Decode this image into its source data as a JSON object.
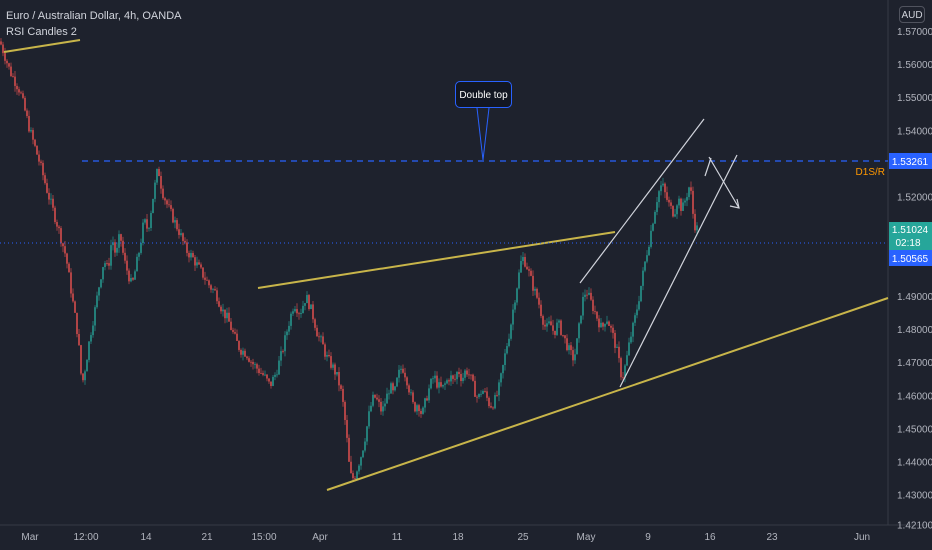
{
  "header": {
    "symbol_title": "Euro / Australian Dollar, 4h, OANDA",
    "indicator": "RSI Candles 2"
  },
  "price_axis": {
    "currency": "AUD",
    "ticks": [
      "1.57000",
      "1.56000",
      "1.55000",
      "1.54000",
      "1.52000",
      "1.51000",
      "1.49000",
      "1.48000",
      "1.47000",
      "1.46000",
      "1.45000",
      "1.44000",
      "1.43000",
      "1.42100"
    ],
    "resistance_label": "1.53261",
    "level_tag": "D1S/R",
    "last_price": "1.51024",
    "countdown": "02:18",
    "prev_close": "1.50565"
  },
  "time_axis": {
    "ticks": [
      "Mar",
      "12:00",
      "14",
      "21",
      "15:00",
      "Apr",
      "11",
      "18",
      "25",
      "May",
      "9",
      "16",
      "23",
      "Jun"
    ]
  },
  "annotations": {
    "callout_text": "Double top"
  },
  "colors": {
    "background": "#1e222d",
    "up_candle": "#26a69a",
    "down_candle": "#ef5350",
    "trendline": "#c8b54a",
    "channel": "#d1d4dc",
    "resistance": "#2962ff",
    "last_price_tag": "#26a69a",
    "prev_close_tag": "#2962ff"
  },
  "chart_data": {
    "type": "candlestick",
    "y_range": [
      1.421,
      1.578
    ],
    "waypoints": [
      [
        0,
        1.567
      ],
      [
        10,
        1.558
      ],
      [
        20,
        1.552
      ],
      [
        30,
        1.54
      ],
      [
        40,
        1.53
      ],
      [
        48,
        1.521
      ],
      [
        58,
        1.511
      ],
      [
        66,
        1.502
      ],
      [
        72,
        1.49
      ],
      [
        78,
        1.478
      ],
      [
        82,
        1.463
      ],
      [
        86,
        1.47
      ],
      [
        90,
        1.478
      ],
      [
        95,
        1.486
      ],
      [
        100,
        1.495
      ],
      [
        104,
        1.501
      ],
      [
        108,
        1.498
      ],
      [
        112,
        1.508
      ],
      [
        116,
        1.502
      ],
      [
        120,
        1.509
      ],
      [
        124,
        1.501
      ],
      [
        128,
        1.497
      ],
      [
        132,
        1.493
      ],
      [
        136,
        1.499
      ],
      [
        140,
        1.505
      ],
      [
        144,
        1.513
      ],
      [
        148,
        1.51
      ],
      [
        153,
        1.52
      ],
      [
        158,
        1.529
      ],
      [
        162,
        1.522
      ],
      [
        168,
        1.517
      ],
      [
        174,
        1.513
      ],
      [
        180,
        1.509
      ],
      [
        186,
        1.504
      ],
      [
        192,
        1.502
      ],
      [
        198,
        1.499
      ],
      [
        204,
        1.496
      ],
      [
        210,
        1.493
      ],
      [
        216,
        1.491
      ],
      [
        222,
        1.486
      ],
      [
        228,
        1.483
      ],
      [
        234,
        1.478
      ],
      [
        240,
        1.474
      ],
      [
        246,
        1.473
      ],
      [
        252,
        1.47
      ],
      [
        258,
        1.468
      ],
      [
        264,
        1.466
      ],
      [
        270,
        1.463
      ],
      [
        276,
        1.467
      ],
      [
        282,
        1.473
      ],
      [
        288,
        1.481
      ],
      [
        294,
        1.488
      ],
      [
        300,
        1.485
      ],
      [
        306,
        1.49
      ],
      [
        310,
        1.487
      ],
      [
        314,
        1.483
      ],
      [
        318,
        1.478
      ],
      [
        322,
        1.476
      ],
      [
        326,
        1.472
      ],
      [
        330,
        1.47
      ],
      [
        334,
        1.468
      ],
      [
        338,
        1.465
      ],
      [
        342,
        1.46
      ],
      [
        346,
        1.45
      ],
      [
        350,
        1.436
      ],
      [
        354,
        1.435
      ],
      [
        358,
        1.439
      ],
      [
        362,
        1.443
      ],
      [
        366,
        1.449
      ],
      [
        370,
        1.456
      ],
      [
        374,
        1.46
      ],
      [
        378,
        1.458
      ],
      [
        382,
        1.455
      ],
      [
        386,
        1.459
      ],
      [
        390,
        1.463
      ],
      [
        394,
        1.46
      ],
      [
        398,
        1.466
      ],
      [
        402,
        1.469
      ],
      [
        406,
        1.466
      ],
      [
        410,
        1.461
      ],
      [
        414,
        1.456
      ],
      [
        418,
        1.458
      ],
      [
        422,
        1.454
      ],
      [
        426,
        1.459
      ],
      [
        430,
        1.463
      ],
      [
        434,
        1.466
      ],
      [
        438,
        1.463
      ],
      [
        442,
        1.462
      ],
      [
        446,
        1.464
      ],
      [
        450,
        1.466
      ],
      [
        454,
        1.464
      ],
      [
        458,
        1.468
      ],
      [
        462,
        1.465
      ],
      [
        466,
        1.468
      ],
      [
        470,
        1.466
      ],
      [
        474,
        1.462
      ],
      [
        478,
        1.459
      ],
      [
        482,
        1.462
      ],
      [
        486,
        1.46
      ],
      [
        490,
        1.457
      ],
      [
        494,
        1.458
      ],
      [
        498,
        1.461
      ],
      [
        502,
        1.467
      ],
      [
        506,
        1.474
      ],
      [
        510,
        1.48
      ],
      [
        514,
        1.488
      ],
      [
        518,
        1.495
      ],
      [
        522,
        1.502
      ],
      [
        526,
        1.5
      ],
      [
        530,
        1.496
      ],
      [
        534,
        1.492
      ],
      [
        538,
        1.489
      ],
      [
        542,
        1.484
      ],
      [
        546,
        1.48
      ],
      [
        550,
        1.482
      ],
      [
        554,
        1.479
      ],
      [
        558,
        1.482
      ],
      [
        562,
        1.479
      ],
      [
        566,
        1.476
      ],
      [
        570,
        1.473
      ],
      [
        574,
        1.471
      ],
      [
        578,
        1.478
      ],
      [
        582,
        1.488
      ],
      [
        586,
        1.492
      ],
      [
        590,
        1.489
      ],
      [
        594,
        1.486
      ],
      [
        598,
        1.483
      ],
      [
        602,
        1.48
      ],
      [
        606,
        1.484
      ],
      [
        610,
        1.481
      ],
      [
        614,
        1.477
      ],
      [
        618,
        1.472
      ],
      [
        622,
        1.465
      ],
      [
        626,
        1.47
      ],
      [
        630,
        1.477
      ],
      [
        634,
        1.482
      ],
      [
        638,
        1.488
      ],
      [
        642,
        1.495
      ],
      [
        646,
        1.502
      ],
      [
        650,
        1.508
      ],
      [
        654,
        1.515
      ],
      [
        658,
        1.521
      ],
      [
        662,
        1.524
      ],
      [
        666,
        1.52
      ],
      [
        670,
        1.517
      ],
      [
        674,
        1.515
      ],
      [
        678,
        1.52
      ],
      [
        682,
        1.516
      ],
      [
        686,
        1.52
      ],
      [
        690,
        1.524
      ],
      [
        694,
        1.512
      ],
      [
        698,
        1.51
      ]
    ]
  }
}
